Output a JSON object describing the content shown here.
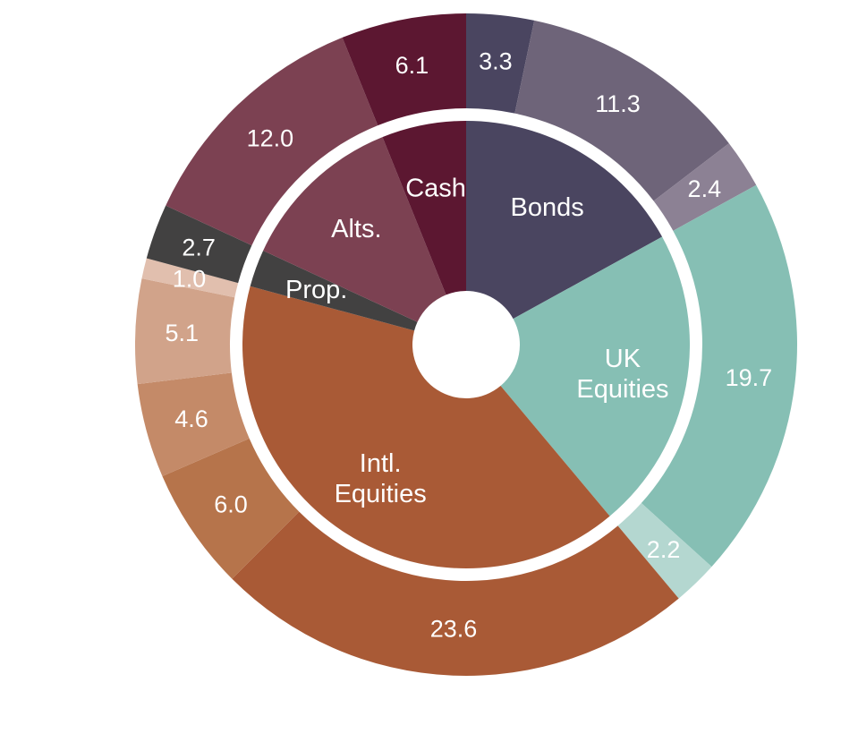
{
  "chart_data": {
    "type": "pie",
    "variant": "two-ring donut",
    "title": "",
    "inner_ring": [
      {
        "label": "Bonds",
        "value": 17.0,
        "color": "#4a4560"
      },
      {
        "label": "UK Equities",
        "value": 21.9,
        "color": "#86bfb4"
      },
      {
        "label": "Intl. Equities",
        "value": 40.3,
        "color": "#a95a36"
      },
      {
        "label": "Prop.",
        "value": 2.7,
        "color": "#424141"
      },
      {
        "label": "Alts.",
        "value": 12.0,
        "color": "#7c4152"
      },
      {
        "label": "Cash",
        "value": 6.1,
        "color": "#5c1731"
      }
    ],
    "outer_ring": [
      {
        "group": "Bonds",
        "value": 3.3,
        "label": "3.3",
        "color": "#4a4560"
      },
      {
        "group": "Bonds",
        "value": 11.3,
        "label": "11.3",
        "color": "#6e6479"
      },
      {
        "group": "Bonds",
        "value": 2.4,
        "label": "2.4",
        "color": "#8c8194"
      },
      {
        "group": "UK Equities",
        "value": 19.7,
        "label": "19.7",
        "color": "#86bfb4"
      },
      {
        "group": "UK Equities",
        "value": 2.2,
        "label": "2.2",
        "color": "#b4d7d0"
      },
      {
        "group": "Intl. Equities",
        "value": 23.6,
        "label": "23.6",
        "color": "#a95a36"
      },
      {
        "group": "Intl. Equities",
        "value": 6.0,
        "label": "6.0",
        "color": "#b6744b"
      },
      {
        "group": "Intl. Equities",
        "value": 4.6,
        "label": "4.6",
        "color": "#c48a68"
      },
      {
        "group": "Intl. Equities",
        "value": 5.1,
        "label": "5.1",
        "color": "#d1a38a"
      },
      {
        "group": "Intl. Equities",
        "value": 1.0,
        "label": "1.0",
        "color": "#e1bfae"
      },
      {
        "group": "Prop.",
        "value": 2.7,
        "label": "2.7",
        "color": "#424141"
      },
      {
        "group": "Alts.",
        "value": 12.0,
        "label": "12.0",
        "color": "#7c4152"
      },
      {
        "group": "Cash",
        "value": 6.1,
        "label": "6.1",
        "color": "#5c1731"
      }
    ]
  }
}
